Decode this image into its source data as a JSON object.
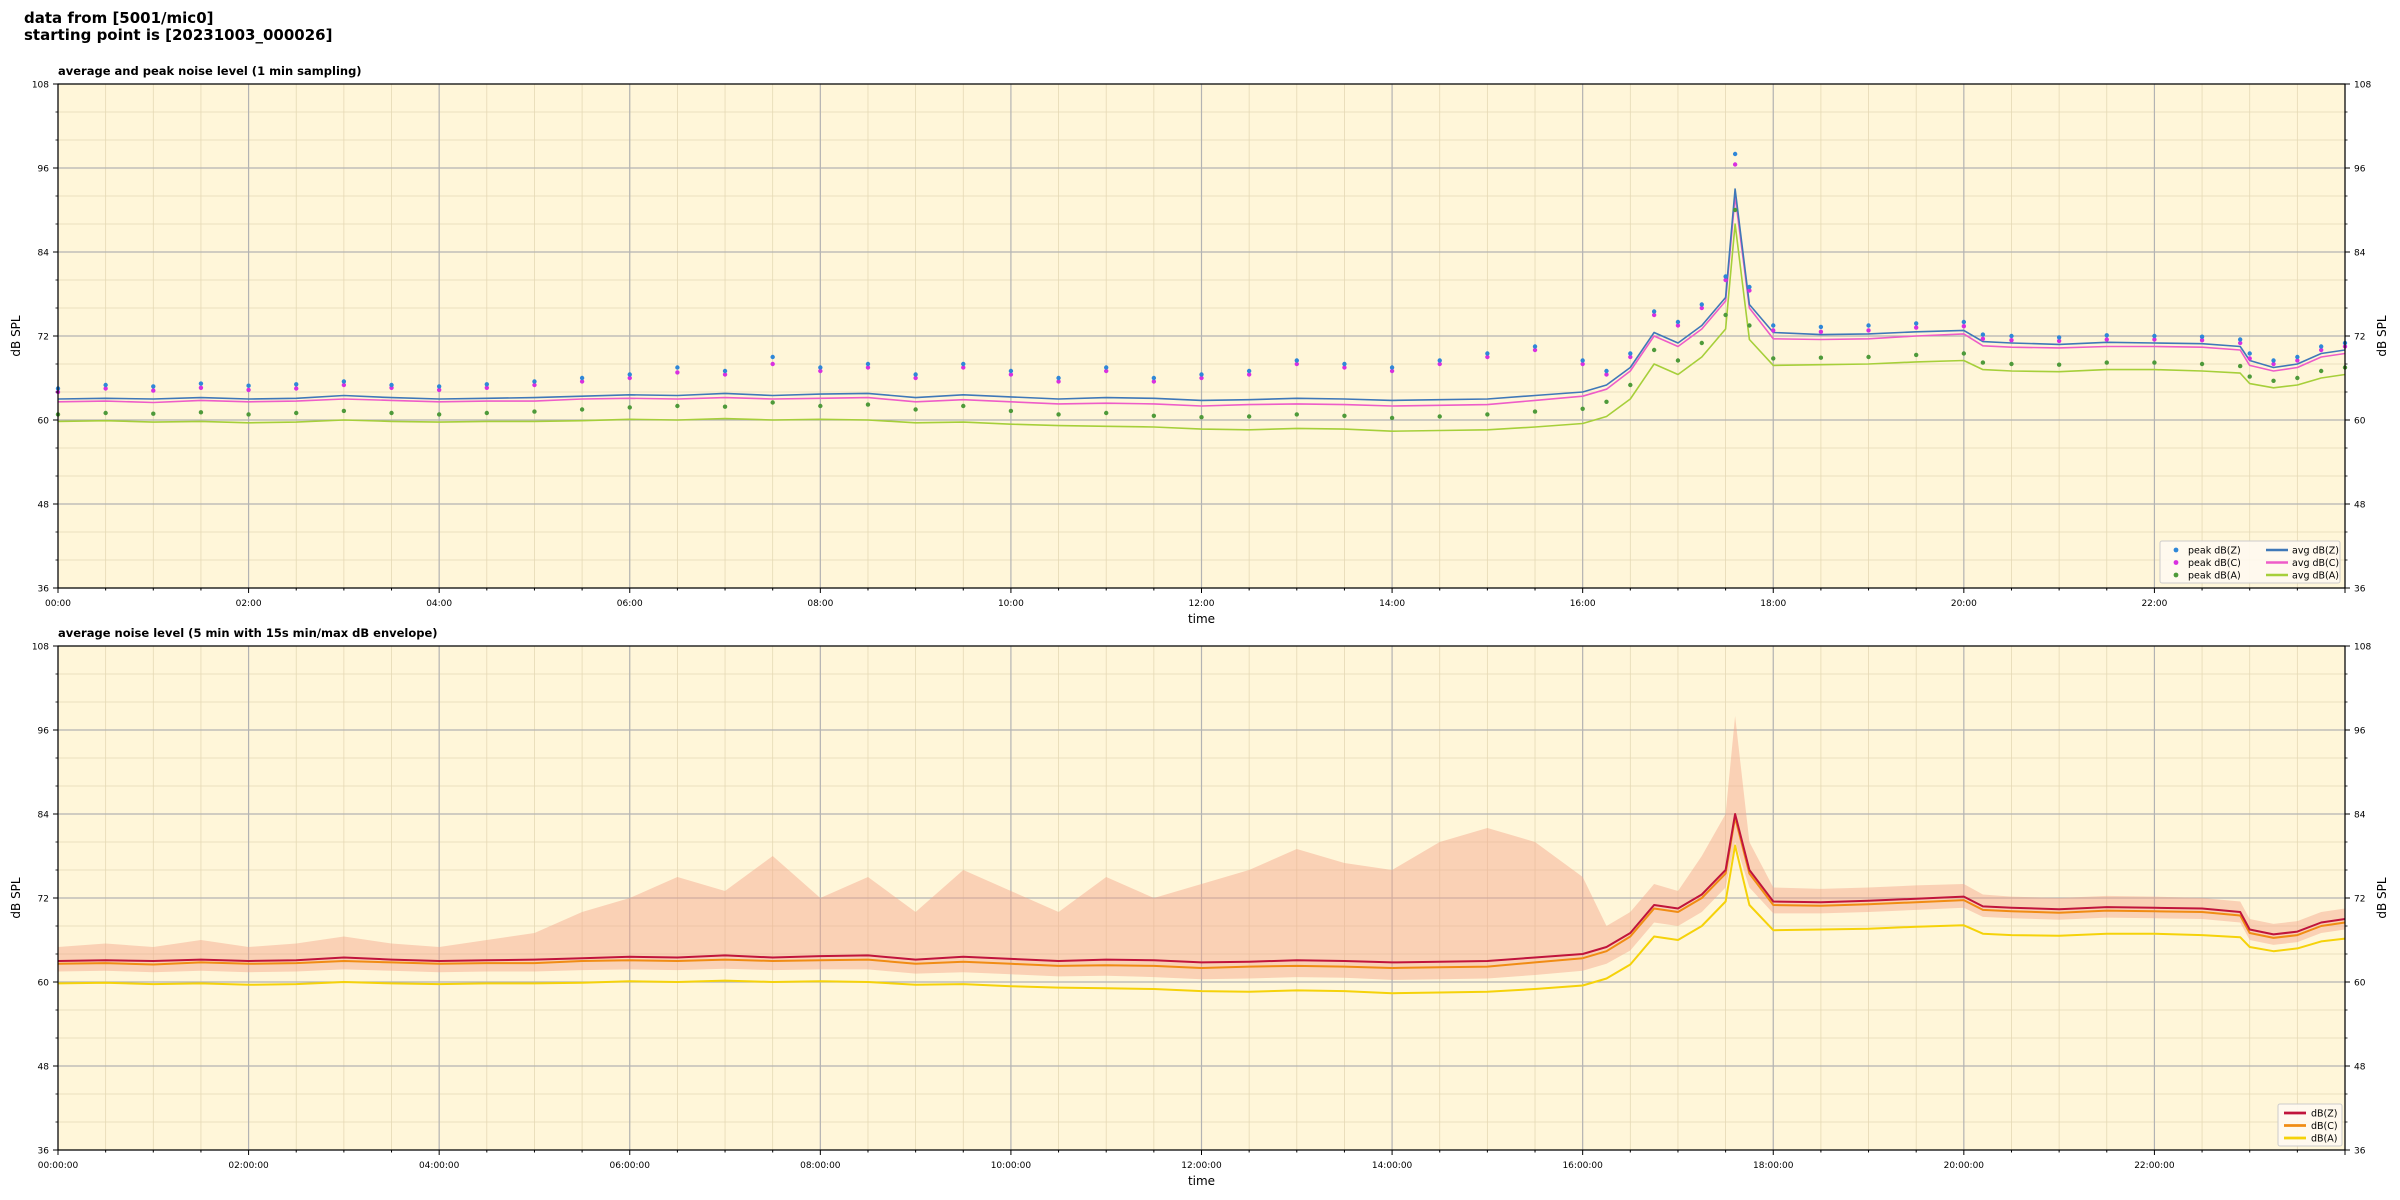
{
  "header": {
    "line1": "data from [5001/mic0]",
    "line2": "starting point is [20231003_000026]"
  },
  "colors": {
    "plot_bg": "#fff6d9",
    "peak_z": "#2f87d8",
    "peak_c": "#d92fe0",
    "peak_a": "#4e9a3a",
    "avg_z": "#3f78b8",
    "avg_c": "#ee5cc8",
    "avg_a": "#a6cf3a",
    "dbz": "#c0143c",
    "dbc": "#f08c14",
    "dba": "#f5d20a",
    "envelope": "#f4a58a"
  },
  "chart_data": [
    {
      "type": "line",
      "title": "average and peak noise level (1 min sampling)",
      "xlabel": "time",
      "ylabel": "dB SPL",
      "ylabel_right": "dB SPL",
      "xlim": [
        0,
        24
      ],
      "ylim": [
        36,
        108
      ],
      "yticks": [
        36,
        48,
        60,
        72,
        84,
        96,
        108
      ],
      "xticks": [
        "00:00",
        "02:00",
        "04:00",
        "06:00",
        "08:00",
        "10:00",
        "12:00",
        "14:00",
        "16:00",
        "18:00",
        "20:00",
        "22:00"
      ],
      "grid": true,
      "legend_position": "bottom-right",
      "legend": [
        "peak dB(Z)",
        "peak dB(C)",
        "peak dB(A)",
        "avg dB(Z)",
        "avg dB(C)",
        "avg dB(A)"
      ],
      "x": [
        0.0,
        0.5,
        1.0,
        1.5,
        2.0,
        2.5,
        3.0,
        3.5,
        4.0,
        4.5,
        5.0,
        5.5,
        6.0,
        6.5,
        7.0,
        7.5,
        8.0,
        8.5,
        9.0,
        9.5,
        10.0,
        10.5,
        11.0,
        11.5,
        12.0,
        12.5,
        13.0,
        13.5,
        14.0,
        14.5,
        15.0,
        15.5,
        16.0,
        16.25,
        16.5,
        16.75,
        17.0,
        17.25,
        17.5,
        17.6,
        17.75,
        18.0,
        18.5,
        19.0,
        19.5,
        20.0,
        20.2,
        20.5,
        21.0,
        21.5,
        22.0,
        22.5,
        22.9,
        23.0,
        23.25,
        23.5,
        23.75,
        24.0
      ],
      "series": [
        {
          "name": "avg dB(Z)",
          "values": [
            63.0,
            63.1,
            63.0,
            63.2,
            63.0,
            63.1,
            63.5,
            63.2,
            63.0,
            63.1,
            63.2,
            63.4,
            63.6,
            63.5,
            63.8,
            63.5,
            63.7,
            63.8,
            63.2,
            63.6,
            63.3,
            63.0,
            63.2,
            63.1,
            62.8,
            62.9,
            63.1,
            63.0,
            62.8,
            62.9,
            63.0,
            63.5,
            64.0,
            65.0,
            67.5,
            72.5,
            71.0,
            73.5,
            77.5,
            93.0,
            76.5,
            72.5,
            72.2,
            72.3,
            72.6,
            72.8,
            71.2,
            71.0,
            70.8,
            71.1,
            71.0,
            70.9,
            70.5,
            68.5,
            67.5,
            68.0,
            69.5,
            70.0
          ]
        },
        {
          "name": "avg dB(C)",
          "values": [
            62.6,
            62.7,
            62.5,
            62.8,
            62.6,
            62.7,
            63.0,
            62.8,
            62.6,
            62.7,
            62.7,
            63.0,
            63.1,
            63.0,
            63.2,
            63.0,
            63.1,
            63.2,
            62.6,
            62.9,
            62.6,
            62.3,
            62.4,
            62.3,
            62.0,
            62.2,
            62.3,
            62.2,
            62.0,
            62.1,
            62.2,
            62.8,
            63.4,
            64.4,
            67.0,
            72.0,
            70.5,
            73.0,
            77.0,
            92.0,
            76.0,
            71.6,
            71.5,
            71.6,
            72.0,
            72.3,
            70.6,
            70.4,
            70.3,
            70.5,
            70.5,
            70.4,
            70.0,
            67.8,
            67.0,
            67.5,
            69.0,
            69.5
          ]
        },
        {
          "name": "avg dB(A)",
          "values": [
            59.8,
            59.9,
            59.7,
            59.8,
            59.6,
            59.7,
            60.0,
            59.8,
            59.7,
            59.8,
            59.8,
            59.9,
            60.1,
            60.0,
            60.2,
            60.0,
            60.1,
            60.0,
            59.6,
            59.7,
            59.4,
            59.2,
            59.1,
            59.0,
            58.7,
            58.6,
            58.8,
            58.7,
            58.4,
            58.5,
            58.6,
            59.0,
            59.5,
            60.5,
            63.0,
            68.0,
            66.5,
            69.0,
            73.0,
            88.0,
            71.5,
            67.8,
            67.9,
            68.0,
            68.3,
            68.5,
            67.2,
            67.0,
            66.9,
            67.2,
            67.2,
            67.0,
            66.7,
            65.2,
            64.6,
            65.0,
            66.0,
            66.5
          ]
        },
        {
          "name": "peak dB(Z)",
          "values": [
            64.5,
            65.0,
            64.8,
            65.2,
            64.9,
            65.1,
            65.5,
            65.0,
            64.8,
            65.1,
            65.5,
            66.0,
            66.5,
            67.5,
            67.0,
            69.0,
            67.5,
            68.0,
            66.5,
            68.0,
            67.0,
            66.0,
            67.5,
            66.0,
            66.5,
            67.0,
            68.5,
            68.0,
            67.5,
            68.5,
            69.5,
            70.5,
            68.5,
            67.0,
            69.5,
            75.5,
            74.0,
            76.5,
            80.5,
            98.0,
            79.0,
            73.5,
            73.3,
            73.5,
            73.8,
            74.0,
            72.2,
            72.0,
            71.8,
            72.1,
            72.0,
            71.9,
            71.5,
            69.5,
            68.5,
            69.0,
            70.5,
            71.0
          ]
        },
        {
          "name": "peak dB(C)",
          "values": [
            64.0,
            64.5,
            64.2,
            64.6,
            64.3,
            64.5,
            65.0,
            64.6,
            64.3,
            64.6,
            65.0,
            65.5,
            66.0,
            66.8,
            66.5,
            68.0,
            67.0,
            67.5,
            66.0,
            67.5,
            66.5,
            65.5,
            67.0,
            65.5,
            66.0,
            66.5,
            68.0,
            67.5,
            67.0,
            68.0,
            69.0,
            70.0,
            68.0,
            66.5,
            69.0,
            75.0,
            73.5,
            76.0,
            80.0,
            96.5,
            78.5,
            72.8,
            72.6,
            72.8,
            73.2,
            73.4,
            71.6,
            71.4,
            71.3,
            71.5,
            71.5,
            71.4,
            71.0,
            68.8,
            68.0,
            68.5,
            70.0,
            70.5
          ]
        },
        {
          "name": "peak dB(A)",
          "values": [
            60.8,
            61.0,
            60.9,
            61.1,
            60.8,
            61.0,
            61.3,
            61.0,
            60.8,
            61.0,
            61.2,
            61.5,
            61.8,
            62.0,
            61.9,
            62.5,
            62.0,
            62.2,
            61.5,
            62.0,
            61.3,
            60.8,
            61.0,
            60.6,
            60.4,
            60.5,
            60.8,
            60.6,
            60.3,
            60.5,
            60.8,
            61.2,
            61.6,
            62.6,
            65.0,
            70.0,
            68.5,
            71.0,
            75.0,
            90.0,
            73.5,
            68.8,
            68.9,
            69.0,
            69.3,
            69.5,
            68.2,
            68.0,
            67.9,
            68.2,
            68.2,
            68.0,
            67.7,
            66.2,
            65.6,
            66.0,
            67.0,
            67.5
          ]
        }
      ]
    },
    {
      "type": "line",
      "title": "average noise level (5 min with 15s min/max dB envelope)",
      "xlabel": "time",
      "ylabel": "dB SPL",
      "ylabel_right": "dB SPL",
      "xlim": [
        0,
        24
      ],
      "ylim": [
        36,
        108
      ],
      "yticks": [
        36,
        48,
        60,
        72,
        84,
        96,
        108
      ],
      "xticks": [
        "00:00:00",
        "02:00:00",
        "04:00:00",
        "06:00:00",
        "08:00:00",
        "10:00:00",
        "12:00:00",
        "14:00:00",
        "16:00:00",
        "18:00:00",
        "20:00:00",
        "22:00:00"
      ],
      "grid": true,
      "legend_position": "bottom-right",
      "legend": [
        "dB(Z)",
        "dB(C)",
        "dB(A)"
      ],
      "x": [
        0.0,
        0.5,
        1.0,
        1.5,
        2.0,
        2.5,
        3.0,
        3.5,
        4.0,
        4.5,
        5.0,
        5.5,
        6.0,
        6.5,
        7.0,
        7.5,
        8.0,
        8.5,
        9.0,
        9.5,
        10.0,
        10.5,
        11.0,
        11.5,
        12.0,
        12.5,
        13.0,
        13.5,
        14.0,
        14.5,
        15.0,
        15.5,
        16.0,
        16.25,
        16.5,
        16.75,
        17.0,
        17.25,
        17.5,
        17.6,
        17.75,
        18.0,
        18.5,
        19.0,
        19.5,
        20.0,
        20.2,
        20.5,
        21.0,
        21.5,
        22.0,
        22.5,
        22.9,
        23.0,
        23.25,
        23.5,
        23.75,
        24.0
      ],
      "series": [
        {
          "name": "dB(Z)",
          "values": [
            63.0,
            63.1,
            63.0,
            63.2,
            63.0,
            63.1,
            63.5,
            63.2,
            63.0,
            63.1,
            63.2,
            63.4,
            63.6,
            63.5,
            63.8,
            63.5,
            63.7,
            63.8,
            63.2,
            63.6,
            63.3,
            63.0,
            63.2,
            63.1,
            62.8,
            62.9,
            63.1,
            63.0,
            62.8,
            62.9,
            63.0,
            63.5,
            64.0,
            65.0,
            67.0,
            71.0,
            70.5,
            72.5,
            76.0,
            84.0,
            76.0,
            71.5,
            71.4,
            71.6,
            71.9,
            72.2,
            70.8,
            70.6,
            70.4,
            70.7,
            70.6,
            70.5,
            70.0,
            67.5,
            66.8,
            67.2,
            68.5,
            69.0
          ]
        },
        {
          "name": "dB(C)",
          "values": [
            62.6,
            62.7,
            62.5,
            62.8,
            62.6,
            62.7,
            63.0,
            62.8,
            62.6,
            62.7,
            62.7,
            63.0,
            63.1,
            63.0,
            63.2,
            63.0,
            63.1,
            63.2,
            62.6,
            62.9,
            62.6,
            62.3,
            62.4,
            62.3,
            62.0,
            62.2,
            62.3,
            62.2,
            62.0,
            62.1,
            62.2,
            62.8,
            63.4,
            64.4,
            66.5,
            70.5,
            70.0,
            72.0,
            75.5,
            83.5,
            75.5,
            71.0,
            70.9,
            71.1,
            71.4,
            71.7,
            70.3,
            70.1,
            69.9,
            70.2,
            70.1,
            70.0,
            69.5,
            67.0,
            66.3,
            66.7,
            68.0,
            68.5
          ]
        },
        {
          "name": "dB(A)",
          "values": [
            59.8,
            59.9,
            59.7,
            59.8,
            59.6,
            59.7,
            60.0,
            59.8,
            59.7,
            59.8,
            59.8,
            59.9,
            60.1,
            60.0,
            60.2,
            60.0,
            60.1,
            60.0,
            59.6,
            59.7,
            59.4,
            59.2,
            59.1,
            59.0,
            58.7,
            58.6,
            58.8,
            58.7,
            58.4,
            58.5,
            58.6,
            59.0,
            59.5,
            60.5,
            62.5,
            66.5,
            66.0,
            68.0,
            71.5,
            79.5,
            71.0,
            67.4,
            67.5,
            67.6,
            67.9,
            68.1,
            66.9,
            66.7,
            66.6,
            66.9,
            66.9,
            66.7,
            66.4,
            65.0,
            64.4,
            64.8,
            65.8,
            66.2
          ]
        },
        {
          "name": "envelope max",
          "values": [
            65.0,
            65.5,
            65.0,
            66.0,
            65.0,
            65.5,
            66.5,
            65.5,
            65.0,
            66.0,
            67.0,
            70.0,
            72.0,
            75.0,
            73.0,
            78.0,
            72.0,
            75.0,
            70.0,
            76.0,
            73.0,
            70.0,
            75.0,
            72.0,
            74.0,
            76.0,
            79.0,
            77.0,
            76.0,
            80.0,
            82.0,
            80.0,
            75.0,
            68.0,
            70.0,
            74.0,
            73.0,
            78.0,
            84.0,
            98.0,
            80.0,
            73.5,
            73.3,
            73.5,
            73.8,
            74.0,
            72.5,
            72.2,
            72.0,
            72.3,
            72.2,
            72.0,
            71.5,
            69.0,
            68.3,
            68.7,
            70.0,
            70.5
          ]
        },
        {
          "name": "envelope min",
          "values": [
            61.5,
            61.6,
            61.4,
            61.6,
            61.4,
            61.5,
            61.8,
            61.6,
            61.4,
            61.5,
            61.5,
            61.7,
            61.8,
            61.7,
            61.9,
            61.7,
            61.8,
            61.8,
            61.2,
            61.4,
            61.1,
            60.8,
            60.9,
            60.7,
            60.4,
            60.5,
            60.7,
            60.6,
            60.3,
            60.4,
            60.5,
            61.0,
            61.6,
            62.6,
            64.5,
            68.5,
            68.0,
            70.0,
            73.5,
            80.0,
            73.5,
            69.8,
            69.8,
            70.0,
            70.3,
            70.6,
            69.3,
            69.1,
            68.9,
            69.2,
            69.1,
            69.0,
            68.5,
            66.0,
            65.3,
            65.7,
            67.0,
            67.5
          ]
        }
      ]
    }
  ]
}
